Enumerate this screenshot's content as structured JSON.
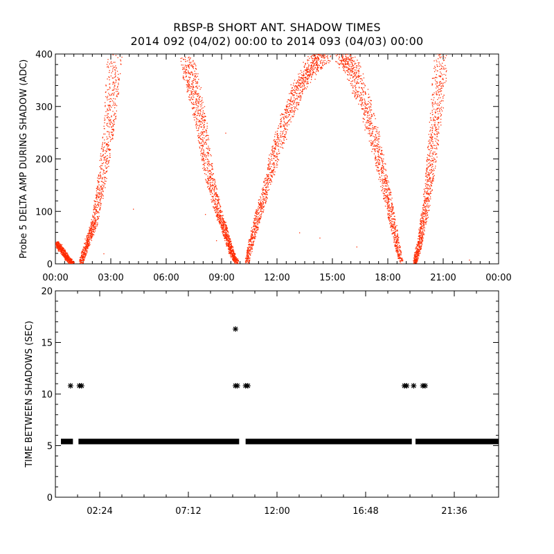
{
  "title_line1": "RBSP-B SHORT ANT. SHADOW TIMES",
  "title_line2": "2014 092 (04/02) 00:00 to 2014 093 (04/03) 00:00",
  "chart_data": [
    {
      "type": "scatter",
      "ylabel": "Probe 5 DELTA AMP DURING SHADOW (ADC)",
      "x_tick_labels": [
        "00:00",
        "03:00",
        "06:00",
        "09:00",
        "12:00",
        "15:00",
        "18:00",
        "21:00",
        "00:00"
      ],
      "y_tick_labels": [
        "0",
        "100",
        "200",
        "300",
        "400"
      ],
      "xlim_hours": [
        0,
        24
      ],
      "ylim": [
        0,
        400
      ],
      "color": "#ff2a00",
      "branches": [
        {
          "x": [
            0.05,
            0.3,
            0.6,
            0.9
          ],
          "y": [
            40,
            28,
            12,
            2
          ]
        },
        {
          "x": [
            1.35,
            1.7,
            2.1,
            2.5,
            2.9,
            3.2
          ],
          "y": [
            2,
            40,
            80,
            160,
            270,
            390
          ]
        },
        {
          "x": [
            7.1,
            7.5,
            7.9,
            8.3,
            8.8,
            9.2,
            9.5,
            9.8
          ],
          "y": [
            390,
            330,
            260,
            170,
            100,
            60,
            25,
            2
          ]
        },
        {
          "x": [
            10.35,
            10.7,
            11.2,
            11.8,
            12.5,
            13.2,
            13.9,
            14.5
          ],
          "y": [
            2,
            60,
            120,
            200,
            280,
            340,
            380,
            400
          ]
        },
        {
          "x": [
            15.5,
            16.1,
            16.8,
            17.4,
            17.9,
            18.3,
            18.7
          ],
          "y": [
            400,
            370,
            300,
            220,
            140,
            70,
            2
          ]
        },
        {
          "x": [
            19.45,
            19.7,
            20.0,
            20.3,
            20.6,
            20.85
          ],
          "y": [
            2,
            40,
            100,
            180,
            280,
            395
          ]
        }
      ]
    },
    {
      "type": "scatter",
      "ylabel": "TIME BETWEEN SHADOWS (SEC)",
      "x_tick_labels": [
        "02:24",
        "07:12",
        "12:00",
        "16:48",
        "21:36"
      ],
      "x_tick_hours": [
        2.4,
        7.2,
        12.0,
        16.8,
        21.6
      ],
      "y_tick_labels": [
        "0",
        "5",
        "10",
        "15",
        "20"
      ],
      "xlim_hours": [
        0,
        24
      ],
      "ylim": [
        0,
        20
      ],
      "color": "#000000",
      "baseline_value": 5.4,
      "baseline_gaps_hours": [
        [
          0.95,
          1.25
        ],
        [
          9.95,
          10.3
        ],
        [
          19.3,
          19.5
        ]
      ],
      "points": [
        {
          "x": 0.82,
          "y": 10.8
        },
        {
          "x": 1.3,
          "y": 10.8
        },
        {
          "x": 1.42,
          "y": 10.8
        },
        {
          "x": 9.75,
          "y": 16.3
        },
        {
          "x": 9.75,
          "y": 10.8
        },
        {
          "x": 9.85,
          "y": 10.8
        },
        {
          "x": 10.3,
          "y": 10.8
        },
        {
          "x": 10.42,
          "y": 10.8
        },
        {
          "x": 18.9,
          "y": 10.8
        },
        {
          "x": 19.02,
          "y": 10.8
        },
        {
          "x": 19.4,
          "y": 10.8
        },
        {
          "x": 19.9,
          "y": 10.8
        },
        {
          "x": 20.02,
          "y": 10.8
        }
      ]
    }
  ]
}
